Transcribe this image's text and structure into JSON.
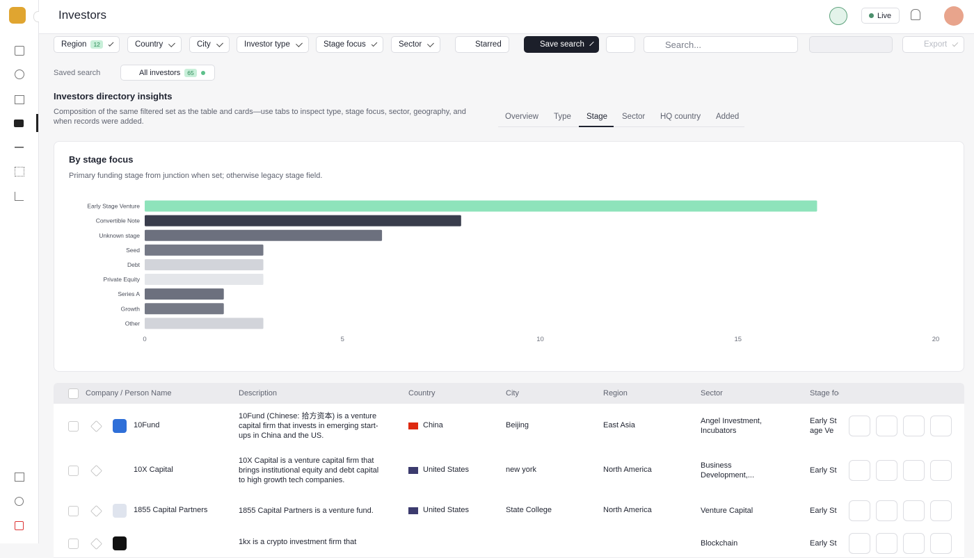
{
  "header": {
    "title": "Investors",
    "live": "Live"
  },
  "filters": {
    "region": "Region",
    "region_count": 12,
    "country": "Country",
    "city": "City",
    "investor_type": "Investor type",
    "stage_focus": "Stage focus",
    "sector": "Sector",
    "starred": "Starred",
    "save_search": "Save search",
    "search_placeholder": "Search...",
    "export": "Export"
  },
  "saved_search": {
    "label": "Saved search",
    "current": "All investors",
    "count": 65
  },
  "insights": {
    "title": "Investors directory insights",
    "description": "Composition of the same filtered set as the table and cards—use tabs to inspect type, stage focus, sector, geography, and when records were added.",
    "tabs": [
      "Overview",
      "Type",
      "Stage",
      "Sector",
      "HQ country",
      "Added"
    ],
    "active_tab": 2
  },
  "chart_data": {
    "type": "hbar",
    "title": "By stage focus",
    "subtitle": "Primary funding stage from junction when set; otherwise legacy stage field.",
    "categories": [
      "Early Stage Venture",
      "Convertible Note",
      "Unknown stage",
      "Seed",
      "Debt",
      "Private Equity",
      "Series A",
      "Growth",
      "Other"
    ],
    "values": [
      17,
      8,
      6,
      3,
      3,
      3,
      2,
      2,
      3
    ],
    "colors": [
      "#8ee3bb",
      "#393d4c",
      "#6c707e",
      "#757986",
      "#d2d4da",
      "#e4e6ea",
      "#6c707e",
      "#757986",
      "#d2d4da"
    ],
    "xlim": [
      0,
      20
    ],
    "xticks": [
      0,
      5,
      10,
      15,
      20
    ],
    "grid": false
  },
  "table": {
    "columns": [
      "Company / Person Name",
      "Description",
      "Country",
      "City",
      "Region",
      "Sector",
      "Stage focus"
    ],
    "rows": [
      {
        "name": "10Fund",
        "description": "10Fund (Chinese: 拾方资本) is a venture capital firm that invests in emerging start-ups in China and the US.",
        "country": "China",
        "city": "Beijing",
        "region": "East Asia",
        "sector": "Angel Investment, Incubators",
        "stage": "Early Stage Venture"
      },
      {
        "name": "10X Capital",
        "description": "10X Capital is a venture capital firm that brings institutional equity and debt capital to high growth tech companies.",
        "country": "United States",
        "city": "new york",
        "region": "North America",
        "sector": "Business Development,...",
        "stage": "Early Stage Venture"
      },
      {
        "name": "1855 Capital Partners",
        "description": "1855 Capital Partners is a venture fund.",
        "country": "United States",
        "city": "State College",
        "region": "North America",
        "sector": "Venture Capital",
        "stage": "Early Stage Venture"
      },
      {
        "description": "1kx is a crypto investment firm that",
        "sector": "Blockchain",
        "stage": "Early Stage Venture"
      }
    ]
  }
}
